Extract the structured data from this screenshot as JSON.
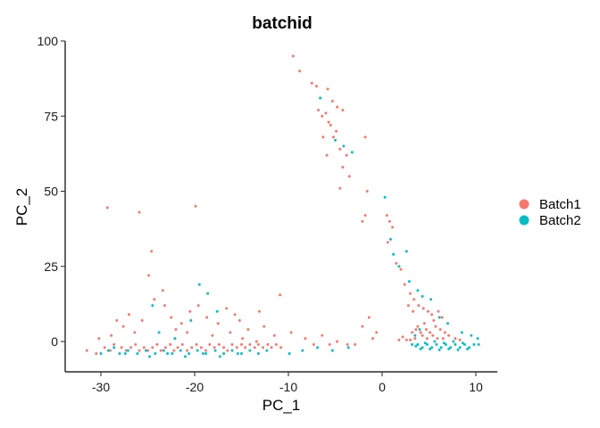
{
  "chart_data": {
    "type": "scatter",
    "title": "batchid",
    "xlabel": "PC_1",
    "ylabel": "PC_2",
    "xlim": [
      -33,
      12
    ],
    "ylim": [
      -10,
      100
    ],
    "x_ticks": [
      -30,
      -20,
      -10,
      0,
      10
    ],
    "y_ticks": [
      0,
      25,
      50,
      75,
      100
    ],
    "x_tick_labels": [
      "-30",
      "-20",
      "-10",
      "0",
      "10"
    ],
    "y_tick_labels": [
      "0",
      "25",
      "50",
      "75",
      "100"
    ],
    "grid": false,
    "legend_position": "right",
    "series": [
      {
        "name": "Batch1",
        "color": "#F8766D",
        "points": [
          [
            -9.5,
            95
          ],
          [
            -8.8,
            90
          ],
          [
            -7.5,
            86
          ],
          [
            -7.0,
            85
          ],
          [
            -6.6,
            81
          ],
          [
            -5.8,
            84
          ],
          [
            -5.3,
            80
          ],
          [
            -4.8,
            78
          ],
          [
            -4.2,
            77
          ],
          [
            -6.8,
            77
          ],
          [
            -6.4,
            75
          ],
          [
            -6.0,
            76
          ],
          [
            -5.7,
            73
          ],
          [
            -5.5,
            72
          ],
          [
            -4.9,
            70
          ],
          [
            -5.2,
            68
          ],
          [
            -4.5,
            64
          ],
          [
            -5.9,
            62
          ],
          [
            -6.3,
            68
          ],
          [
            -3.8,
            62
          ],
          [
            -4.2,
            58
          ],
          [
            -1.8,
            68
          ],
          [
            -4.5,
            51
          ],
          [
            -3.5,
            55
          ],
          [
            -1.6,
            50
          ],
          [
            -1.8,
            42
          ],
          [
            -2.1,
            40
          ],
          [
            0.5,
            42
          ],
          [
            0.8,
            40
          ],
          [
            1.1,
            38
          ],
          [
            0.6,
            33
          ],
          [
            1.5,
            26
          ],
          [
            2.0,
            24
          ],
          [
            2.4,
            19
          ],
          [
            3.0,
            16
          ],
          [
            3.4,
            14
          ],
          [
            2.8,
            12
          ],
          [
            3.3,
            10
          ],
          [
            3.9,
            12
          ],
          [
            4.4,
            11
          ],
          [
            4.9,
            10
          ],
          [
            5.3,
            9
          ],
          [
            6.0,
            10
          ],
          [
            6.4,
            8
          ],
          [
            5.5,
            7
          ],
          [
            4.5,
            6
          ],
          [
            3.8,
            5
          ],
          [
            3.2,
            3
          ],
          [
            3.6,
            4
          ],
          [
            4.1,
            3
          ],
          [
            4.7,
            4
          ],
          [
            5.1,
            3
          ],
          [
            5.7,
            5
          ],
          [
            6.2,
            4
          ],
          [
            6.7,
            3
          ],
          [
            7.1,
            2
          ],
          [
            5.4,
            2
          ],
          [
            4.3,
            2
          ],
          [
            3.5,
            1
          ],
          [
            2.6,
            0.5
          ],
          [
            2.2,
            1.5
          ],
          [
            1.8,
            0.5
          ],
          [
            7.8,
            1
          ],
          [
            8.3,
            0.5
          ],
          [
            4.8,
            1
          ],
          [
            5.9,
            1
          ],
          [
            6.5,
            1
          ],
          [
            3.0,
            0.5
          ],
          [
            -31.5,
            -3
          ],
          [
            -30.5,
            -4
          ],
          [
            -30.2,
            1
          ],
          [
            -29.6,
            -2
          ],
          [
            -29.0,
            -3
          ],
          [
            -28.6,
            -1
          ],
          [
            -28.3,
            7
          ],
          [
            -27.8,
            -2
          ],
          [
            -27.3,
            -3
          ],
          [
            -26.8,
            -2
          ],
          [
            -26.3,
            -1
          ],
          [
            -25.9,
            -3
          ],
          [
            -25.4,
            -2
          ],
          [
            -25.0,
            -3
          ],
          [
            -24.5,
            -2
          ],
          [
            -24.0,
            -1
          ],
          [
            -23.6,
            -3
          ],
          [
            -23.1,
            -2
          ],
          [
            -22.6,
            -1
          ],
          [
            -22.2,
            -3
          ],
          [
            -21.8,
            -2
          ],
          [
            -21.3,
            -1
          ],
          [
            -20.8,
            -3
          ],
          [
            -20.3,
            -2
          ],
          [
            -19.8,
            -1
          ],
          [
            -19.3,
            -2
          ],
          [
            -18.8,
            -3
          ],
          [
            -18.4,
            -1
          ],
          [
            -17.9,
            -2
          ],
          [
            -17.4,
            -1
          ],
          [
            -16.9,
            -2
          ],
          [
            -16.5,
            -3
          ],
          [
            -16.0,
            -1
          ],
          [
            -15.5,
            -2
          ],
          [
            -15.0,
            -1
          ],
          [
            -14.6,
            -2
          ],
          [
            -14.1,
            -1
          ],
          [
            -13.6,
            -2
          ],
          [
            -13.2,
            -1
          ],
          [
            -12.7,
            -2
          ],
          [
            -12.2,
            -1
          ],
          [
            -11.8,
            -2
          ],
          [
            -11.3,
            -1
          ],
          [
            -10.8,
            -2
          ],
          [
            -29.3,
            44.5
          ],
          [
            -25.9,
            43
          ],
          [
            -19.9,
            45
          ],
          [
            -24.6,
            30
          ],
          [
            -24.9,
            22
          ],
          [
            -27.0,
            9
          ],
          [
            -25.6,
            7
          ],
          [
            -24.3,
            14
          ],
          [
            -23.2,
            12
          ],
          [
            -22.5,
            8
          ],
          [
            -21.4,
            6
          ],
          [
            -20.5,
            10
          ],
          [
            -19.6,
            12
          ],
          [
            -18.7,
            8
          ],
          [
            -17.5,
            6
          ],
          [
            -16.6,
            11
          ],
          [
            -15.2,
            7
          ],
          [
            -14.3,
            4
          ],
          [
            -12.6,
            5
          ],
          [
            -11.5,
            2
          ],
          [
            -9.7,
            3
          ],
          [
            -8.2,
            1
          ],
          [
            -7.3,
            -1
          ],
          [
            -6.4,
            2
          ],
          [
            -5.6,
            -1
          ],
          [
            -4.8,
            0
          ],
          [
            -10.9,
            15.5
          ],
          [
            -13.1,
            10
          ],
          [
            -15.7,
            9
          ],
          [
            -23.4,
            17
          ],
          [
            -22.0,
            4
          ],
          [
            -26.4,
            3
          ],
          [
            -27.6,
            5
          ],
          [
            -28.9,
            2
          ],
          [
            -20.8,
            3
          ],
          [
            -18.1,
            2
          ],
          [
            -16.2,
            3
          ],
          [
            -14.9,
            1
          ],
          [
            -13.4,
            0
          ],
          [
            -2.1,
            5
          ],
          [
            -1.4,
            8
          ],
          [
            -0.6,
            3
          ],
          [
            -2.9,
            -1
          ],
          [
            -3.7,
            -1
          ],
          [
            -1.0,
            1
          ]
        ]
      },
      {
        "name": "Batch2",
        "color": "#00BFC4",
        "points": [
          [
            -6.6,
            81
          ],
          [
            -5.0,
            67
          ],
          [
            -4.1,
            65
          ],
          [
            -3.2,
            63
          ],
          [
            0.3,
            48
          ],
          [
            0.9,
            34
          ],
          [
            1.2,
            29
          ],
          [
            2.6,
            30
          ],
          [
            1.8,
            25
          ],
          [
            2.9,
            20
          ],
          [
            3.8,
            17
          ],
          [
            4.3,
            15
          ],
          [
            5.2,
            14
          ],
          [
            6.1,
            8
          ],
          [
            7.0,
            6
          ],
          [
            4.0,
            4
          ],
          [
            3.5,
            2
          ],
          [
            8.5,
            3
          ],
          [
            9.5,
            2
          ],
          [
            10.2,
            1
          ],
          [
            3.2,
            -1
          ],
          [
            3.8,
            -1
          ],
          [
            4.3,
            -2
          ],
          [
            4.8,
            -1
          ],
          [
            5.3,
            -2
          ],
          [
            5.8,
            -1
          ],
          [
            6.3,
            -2
          ],
          [
            6.8,
            -1
          ],
          [
            7.3,
            -2
          ],
          [
            7.8,
            -1
          ],
          [
            8.3,
            -2
          ],
          [
            8.8,
            -1
          ],
          [
            9.3,
            -2
          ],
          [
            9.8,
            -1
          ],
          [
            4.6,
            -0.5
          ],
          [
            5.6,
            0
          ],
          [
            6.6,
            -0.5
          ],
          [
            7.6,
            0
          ],
          [
            8.6,
            -0.5
          ],
          [
            4.1,
            -2.5
          ],
          [
            5.1,
            -2.5
          ],
          [
            6.1,
            -2.8
          ],
          [
            7.1,
            -2.5
          ],
          [
            8.1,
            -2.8
          ],
          [
            9.1,
            -2.5
          ],
          [
            3.6,
            -1.5
          ],
          [
            10.3,
            -1
          ],
          [
            -30.0,
            -4
          ],
          [
            -29.2,
            -3
          ],
          [
            -28.0,
            -4
          ],
          [
            -27.1,
            -3
          ],
          [
            -26.1,
            -4
          ],
          [
            -25.2,
            -3
          ],
          [
            -24.2,
            -4
          ],
          [
            -23.3,
            -3
          ],
          [
            -22.4,
            -4
          ],
          [
            -21.5,
            -3
          ],
          [
            -20.6,
            -4
          ],
          [
            -19.7,
            -3
          ],
          [
            -18.8,
            -4
          ],
          [
            -17.8,
            -3
          ],
          [
            -16.9,
            -4
          ],
          [
            -16.0,
            -3
          ],
          [
            -15.0,
            -4
          ],
          [
            -14.1,
            -3
          ],
          [
            -13.2,
            -4
          ],
          [
            -12.3,
            -3
          ],
          [
            -28.6,
            -2
          ],
          [
            -27.4,
            -4
          ],
          [
            -24.8,
            -5
          ],
          [
            -22.9,
            -4
          ],
          [
            -21.0,
            -5
          ],
          [
            -19.1,
            -4
          ],
          [
            -17.3,
            -5
          ],
          [
            -15.4,
            -4
          ],
          [
            -24.5,
            12
          ],
          [
            -23.8,
            3
          ],
          [
            -19.5,
            19
          ],
          [
            -18.6,
            16
          ],
          [
            -17.6,
            10
          ],
          [
            -20.4,
            7
          ],
          [
            -22.1,
            1
          ],
          [
            -8.5,
            -3
          ],
          [
            -6.9,
            -2
          ],
          [
            -5.3,
            -3
          ],
          [
            -3.6,
            -2
          ],
          [
            -9.9,
            -4
          ]
        ]
      }
    ]
  }
}
